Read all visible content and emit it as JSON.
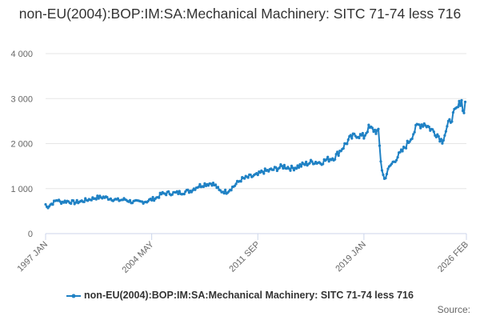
{
  "title": "non-EU(2004):BOP:IM:SA:Mechanical Machinery: SITC 71-74 less 716",
  "source_label": "Source:",
  "colors": {
    "series": "#1f81c4",
    "grid": "#e6e6e6",
    "text": "#666666"
  },
  "chart_data": {
    "type": "line",
    "title": "non-EU(2004):BOP:IM:SA:Mechanical Machinery: SITC 71-74 less 716",
    "xlabel": "",
    "ylabel": "",
    "x_range": [
      1997.0,
      2026.083
    ],
    "ylim": [
      0,
      4000
    ],
    "yticks": [
      {
        "value": 0,
        "label": "0"
      },
      {
        "value": 1000,
        "label": "1 000"
      },
      {
        "value": 2000,
        "label": "2 000"
      },
      {
        "value": 3000,
        "label": "3 000"
      },
      {
        "value": 4000,
        "label": "4 000"
      }
    ],
    "xticks": [
      {
        "value": 1997.0,
        "label": "1997 JAN"
      },
      {
        "value": 2004.333,
        "label": "2004 MAY"
      },
      {
        "value": 2011.667,
        "label": "2011 SEP"
      },
      {
        "value": 2019.0,
        "label": "2019 JAN"
      },
      {
        "value": 2026.083,
        "label": "2026 FEB"
      }
    ],
    "legend": {
      "position": "bottom-center"
    },
    "series": [
      {
        "name": "non-EU(2004):BOP:IM:SA:Mechanical Machinery: SITC 71-74 less 716",
        "frequency": "monthly",
        "points": [
          [
            1997.0,
            650
          ],
          [
            1997.1,
            580
          ],
          [
            1997.3,
            640
          ],
          [
            1997.6,
            700
          ],
          [
            1997.8,
            760
          ],
          [
            1998.0,
            700
          ],
          [
            1998.5,
            720
          ],
          [
            1999.0,
            690
          ],
          [
            1999.5,
            720
          ],
          [
            2000.0,
            760
          ],
          [
            2000.5,
            800
          ],
          [
            2001.0,
            810
          ],
          [
            2001.5,
            780
          ],
          [
            2002.0,
            740
          ],
          [
            2002.5,
            760
          ],
          [
            2003.0,
            700
          ],
          [
            2003.5,
            700
          ],
          [
            2004.0,
            720
          ],
          [
            2004.333,
            760
          ],
          [
            2004.7,
            800
          ],
          [
            2005.0,
            880
          ],
          [
            2005.5,
            900
          ],
          [
            2006.0,
            900
          ],
          [
            2006.5,
            920
          ],
          [
            2007.0,
            950
          ],
          [
            2007.5,
            1050
          ],
          [
            2008.0,
            1100
          ],
          [
            2008.5,
            1120
          ],
          [
            2008.8,
            1050
          ],
          [
            2009.0,
            950
          ],
          [
            2009.5,
            930
          ],
          [
            2010.0,
            1050
          ],
          [
            2010.5,
            1200
          ],
          [
            2011.0,
            1250
          ],
          [
            2011.667,
            1300
          ],
          [
            2012.0,
            1380
          ],
          [
            2012.5,
            1400
          ],
          [
            2013.0,
            1450
          ],
          [
            2013.5,
            1500
          ],
          [
            2014.0,
            1450
          ],
          [
            2014.5,
            1500
          ],
          [
            2015.0,
            1550
          ],
          [
            2015.5,
            1600
          ],
          [
            2016.0,
            1580
          ],
          [
            2016.5,
            1650
          ],
          [
            2017.0,
            1700
          ],
          [
            2017.5,
            1900
          ],
          [
            2018.0,
            2100
          ],
          [
            2018.5,
            2200
          ],
          [
            2019.0,
            2150
          ],
          [
            2019.3,
            2350
          ],
          [
            2019.7,
            2300
          ],
          [
            2020.0,
            2250
          ],
          [
            2020.2,
            1500
          ],
          [
            2020.4,
            1200
          ],
          [
            2020.8,
            1500
          ],
          [
            2021.3,
            1700
          ],
          [
            2021.7,
            1850
          ],
          [
            2022.2,
            2100
          ],
          [
            2022.7,
            2400
          ],
          [
            2023.2,
            2450
          ],
          [
            2023.7,
            2300
          ],
          [
            2024.1,
            2200
          ],
          [
            2024.4,
            2050
          ],
          [
            2024.8,
            2400
          ],
          [
            2025.2,
            2650
          ],
          [
            2025.5,
            2800
          ],
          [
            2025.75,
            3000
          ],
          [
            2025.85,
            2650
          ],
          [
            2026.0,
            2900
          ],
          [
            2026.083,
            2900
          ]
        ]
      }
    ]
  }
}
